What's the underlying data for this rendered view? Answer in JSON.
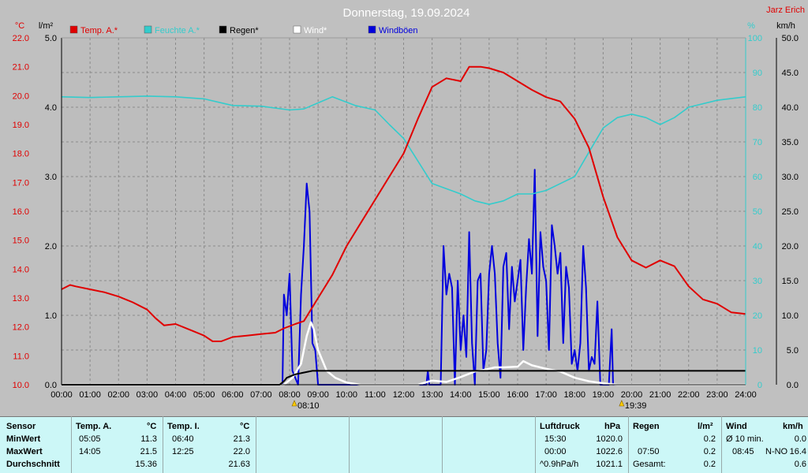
{
  "title": "Donnerstag, 19.09.2024",
  "credit": "Jarz Erich",
  "units": {
    "left1": "°C",
    "left2": "l/m²",
    "right1": "%",
    "right2": "km/h"
  },
  "legend": [
    {
      "label": "Temp. A.*",
      "color": "#e00000"
    },
    {
      "label": "Feuchte A.*",
      "color": "#33cccc"
    },
    {
      "label": "Regen*",
      "color": "#000000"
    },
    {
      "label": "Wind*",
      "color": "#ffffff"
    },
    {
      "label": "Windböen",
      "color": "#0000dd"
    }
  ],
  "sun": {
    "rise": "08:10",
    "set": "19:39"
  },
  "chart_data": {
    "type": "line",
    "title": "Donnerstag, 19.09.2024",
    "x_ticks": [
      "00:00",
      "01:00",
      "02:00",
      "03:00",
      "04:00",
      "05:00",
      "06:00",
      "07:00",
      "08:00",
      "09:00",
      "10:00",
      "11:00",
      "12:00",
      "13:00",
      "14:00",
      "15:00",
      "16:00",
      "17:00",
      "18:00",
      "19:00",
      "20:00",
      "21:00",
      "22:00",
      "23:00",
      "24:00"
    ],
    "axes": {
      "temp_c": {
        "range": [
          10.0,
          22.0
        ],
        "ticks": [
          "10.0",
          "11.0",
          "12.0",
          "13.0",
          "14.0",
          "15.0",
          "16.0",
          "17.0",
          "18.0",
          "19.0",
          "20.0",
          "21.0",
          "22.0"
        ]
      },
      "rain_lm2": {
        "range": [
          0.0,
          5.0
        ],
        "ticks": [
          "0.0",
          "1.0",
          "2.0",
          "3.0",
          "4.0",
          "5.0"
        ]
      },
      "humidity_pct": {
        "range": [
          0,
          100
        ],
        "ticks": [
          "0",
          "10",
          "20",
          "30",
          "40",
          "50",
          "60",
          "70",
          "80",
          "90",
          "100"
        ]
      },
      "wind_kmh": {
        "range": [
          0.0,
          50.0
        ],
        "ticks": [
          "0.0",
          "5.0",
          "10.0",
          "15.0",
          "20.0",
          "25.0",
          "30.0",
          "35.0",
          "40.0",
          "45.0",
          "50.0"
        ]
      }
    },
    "grid": true,
    "series": [
      {
        "name": "Temp. A.*",
        "axis": "temp_c",
        "color": "#e00000",
        "points": [
          [
            0,
            13.3
          ],
          [
            0.3,
            13.45
          ],
          [
            0.5,
            13.4
          ],
          [
            1,
            13.3
          ],
          [
            1.5,
            13.2
          ],
          [
            2,
            13.05
          ],
          [
            2.5,
            12.85
          ],
          [
            3,
            12.6
          ],
          [
            3.3,
            12.3
          ],
          [
            3.6,
            12.05
          ],
          [
            4,
            12.1
          ],
          [
            4.5,
            11.9
          ],
          [
            5,
            11.7
          ],
          [
            5.3,
            11.5
          ],
          [
            5.6,
            11.5
          ],
          [
            6,
            11.65
          ],
          [
            6.5,
            11.7
          ],
          [
            7,
            11.75
          ],
          [
            7.5,
            11.8
          ],
          [
            7.8,
            11.95
          ],
          [
            8.2,
            12.1
          ],
          [
            8.5,
            12.2
          ],
          [
            9,
            13.0
          ],
          [
            9.5,
            13.8
          ],
          [
            10,
            14.8
          ],
          [
            10.5,
            15.6
          ],
          [
            11,
            16.4
          ],
          [
            11.5,
            17.2
          ],
          [
            12,
            18.0
          ],
          [
            12.5,
            19.2
          ],
          [
            13,
            20.3
          ],
          [
            13.5,
            20.6
          ],
          [
            14,
            20.5
          ],
          [
            14.3,
            21.0
          ],
          [
            14.7,
            21.0
          ],
          [
            15,
            20.95
          ],
          [
            15.5,
            20.8
          ],
          [
            16,
            20.5
          ],
          [
            16.5,
            20.2
          ],
          [
            17,
            19.95
          ],
          [
            17.5,
            19.8
          ],
          [
            18,
            19.2
          ],
          [
            18.5,
            18.2
          ],
          [
            19,
            16.5
          ],
          [
            19.5,
            15.1
          ],
          [
            20,
            14.3
          ],
          [
            20.5,
            14.05
          ],
          [
            21,
            14.3
          ],
          [
            21.5,
            14.1
          ],
          [
            22,
            13.4
          ],
          [
            22.5,
            12.95
          ],
          [
            23,
            12.8
          ],
          [
            23.5,
            12.5
          ],
          [
            24,
            12.45
          ]
        ]
      },
      {
        "name": "Feuchte A.*",
        "axis": "humidity_pct",
        "color": "#33cccc",
        "points": [
          [
            0,
            83
          ],
          [
            1,
            82.8
          ],
          [
            2,
            83
          ],
          [
            3,
            83.2
          ],
          [
            4,
            83
          ],
          [
            5,
            82.4
          ],
          [
            6,
            80.5
          ],
          [
            7,
            80.3
          ],
          [
            8,
            79.2
          ],
          [
            8.5,
            79.5
          ],
          [
            9.5,
            83
          ],
          [
            10.3,
            80.5
          ],
          [
            11,
            79.2
          ],
          [
            11.5,
            75
          ],
          [
            12,
            71
          ],
          [
            13,
            58
          ],
          [
            14,
            55
          ],
          [
            14.5,
            53
          ],
          [
            15,
            52
          ],
          [
            15.5,
            53
          ],
          [
            16,
            55
          ],
          [
            16.5,
            55
          ],
          [
            17,
            56
          ],
          [
            17.5,
            58
          ],
          [
            18,
            60
          ],
          [
            18.5,
            67
          ],
          [
            19,
            74
          ],
          [
            19.5,
            77
          ],
          [
            20,
            78
          ],
          [
            20.5,
            77
          ],
          [
            21,
            75
          ],
          [
            21.5,
            77
          ],
          [
            22,
            80
          ],
          [
            23,
            82
          ],
          [
            24,
            83
          ]
        ]
      },
      {
        "name": "Regen*",
        "axis": "rain_lm2",
        "color": "#000000",
        "points": [
          [
            0,
            0
          ],
          [
            7.65,
            0
          ],
          [
            7.8,
            0.05
          ],
          [
            7.9,
            0.1
          ],
          [
            8.2,
            0.15
          ],
          [
            8.8,
            0.2
          ],
          [
            24,
            0.2
          ]
        ]
      },
      {
        "name": "Wind*",
        "axis": "wind_kmh",
        "color": "#ffffff",
        "points": [
          [
            0,
            0
          ],
          [
            7.8,
            0
          ],
          [
            8.1,
            1
          ],
          [
            8.4,
            3
          ],
          [
            8.6,
            7
          ],
          [
            8.75,
            9
          ],
          [
            8.85,
            8
          ],
          [
            9,
            5
          ],
          [
            9.3,
            2
          ],
          [
            9.6,
            1
          ],
          [
            10,
            0.3
          ],
          [
            10.5,
            0
          ],
          [
            12.5,
            0
          ],
          [
            13,
            0.6
          ],
          [
            13.5,
            0.4
          ],
          [
            14,
            1.1
          ],
          [
            14.5,
            1.9
          ],
          [
            15,
            2.3
          ],
          [
            15.2,
            2.5
          ],
          [
            15.5,
            2.5
          ],
          [
            16,
            2.6
          ],
          [
            16.2,
            3.4
          ],
          [
            16.5,
            2.8
          ],
          [
            17,
            2.3
          ],
          [
            17.5,
            1.9
          ],
          [
            18,
            1.0
          ],
          [
            18.5,
            0.5
          ],
          [
            19,
            0.2
          ],
          [
            19.5,
            0
          ],
          [
            24,
            0
          ]
        ]
      },
      {
        "name": "Windböen",
        "axis": "wind_kmh",
        "color": "#0000dd",
        "points": [
          [
            0,
            0
          ],
          [
            7.75,
            0
          ],
          [
            7.8,
            13
          ],
          [
            7.9,
            10
          ],
          [
            8.0,
            16
          ],
          [
            8.1,
            2
          ],
          [
            8.3,
            0
          ],
          [
            8.4,
            13
          ],
          [
            8.5,
            20
          ],
          [
            8.6,
            29
          ],
          [
            8.7,
            25
          ],
          [
            8.8,
            6
          ],
          [
            8.9,
            5
          ],
          [
            9.0,
            0
          ],
          [
            12.8,
            0
          ],
          [
            12.85,
            2
          ],
          [
            12.9,
            0
          ],
          [
            13.3,
            0
          ],
          [
            13.4,
            20
          ],
          [
            13.5,
            13
          ],
          [
            13.6,
            16
          ],
          [
            13.7,
            14
          ],
          [
            13.8,
            0
          ],
          [
            13.9,
            15
          ],
          [
            14.0,
            5
          ],
          [
            14.1,
            10
          ],
          [
            14.2,
            4
          ],
          [
            14.3,
            22
          ],
          [
            14.4,
            6
          ],
          [
            14.5,
            0
          ],
          [
            14.6,
            15
          ],
          [
            14.7,
            16
          ],
          [
            14.8,
            2
          ],
          [
            14.9,
            5
          ],
          [
            15.0,
            16
          ],
          [
            15.1,
            20
          ],
          [
            15.2,
            16
          ],
          [
            15.3,
            6
          ],
          [
            15.4,
            1
          ],
          [
            15.5,
            17
          ],
          [
            15.6,
            19
          ],
          [
            15.7,
            8
          ],
          [
            15.8,
            17
          ],
          [
            15.9,
            12
          ],
          [
            16.0,
            15
          ],
          [
            16.1,
            18
          ],
          [
            16.2,
            5
          ],
          [
            16.3,
            14
          ],
          [
            16.4,
            21
          ],
          [
            16.5,
            16
          ],
          [
            16.6,
            31
          ],
          [
            16.7,
            7
          ],
          [
            16.8,
            22
          ],
          [
            16.9,
            17
          ],
          [
            17.0,
            15
          ],
          [
            17.1,
            5
          ],
          [
            17.2,
            23
          ],
          [
            17.3,
            20
          ],
          [
            17.4,
            16
          ],
          [
            17.5,
            19
          ],
          [
            17.6,
            6
          ],
          [
            17.7,
            17
          ],
          [
            17.8,
            14
          ],
          [
            17.9,
            3
          ],
          [
            18.0,
            5
          ],
          [
            18.1,
            2
          ],
          [
            18.2,
            6
          ],
          [
            18.3,
            20
          ],
          [
            18.4,
            14
          ],
          [
            18.5,
            2
          ],
          [
            18.6,
            4
          ],
          [
            18.7,
            3
          ],
          [
            18.8,
            12
          ],
          [
            18.9,
            0
          ],
          [
            19.2,
            0
          ],
          [
            19.3,
            8
          ],
          [
            19.35,
            0
          ],
          [
            24,
            0
          ]
        ]
      }
    ]
  },
  "panel": {
    "sensor": {
      "title": "Sensor",
      "rows": [
        "MinWert",
        "MaxWert",
        "Durchschnitt"
      ]
    },
    "temp_a": {
      "title": "Temp. A.",
      "unit": "°C",
      "times": [
        "05:05",
        "14:05",
        ""
      ],
      "values": [
        "11.3",
        "21.5",
        "15.36"
      ]
    },
    "temp_i": {
      "title": "Temp. I.",
      "unit": "°C",
      "times": [
        "06:40",
        "12:25",
        ""
      ],
      "values": [
        "21.3",
        "22.0",
        "21.63"
      ]
    },
    "pressure": {
      "title": "Luftdruck",
      "unit": "hPa",
      "times": [
        "15:30",
        "00:00",
        "^0.9hPa/h"
      ],
      "values": [
        "1020.0",
        "1022.6",
        "1021.1"
      ]
    },
    "rain": {
      "title": "Regen",
      "unit": "l/m²",
      "times": [
        "",
        "07:50",
        "Gesamt:"
      ],
      "values": [
        "0.2",
        "0.2",
        "0.2"
      ]
    },
    "wind": {
      "title": "Wind",
      "unit": "km/h",
      "times": [
        "Ø 10 min.",
        "08:45",
        ""
      ],
      "dirs": [
        "",
        "N-NO",
        ""
      ],
      "values": [
        "0.0",
        "16.4",
        "0.6"
      ]
    }
  }
}
